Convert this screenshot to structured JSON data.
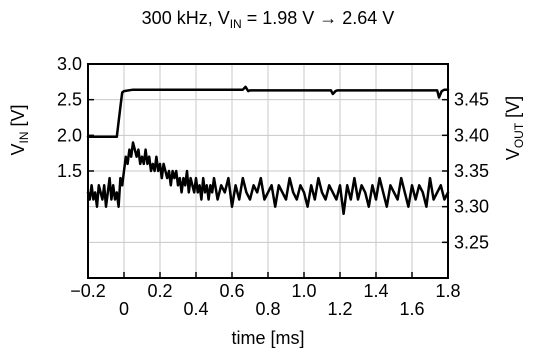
{
  "chart_data": {
    "type": "line",
    "title": {
      "prefix": "300 kHz, V",
      "sub1": "IN",
      "suffix": " = 1.98 V → 2.64 V"
    },
    "xlabel": "time [ms]",
    "ylabel_left": {
      "main": "V",
      "sub": "IN",
      "unit": " [V]"
    },
    "ylabel_right": {
      "main": "V",
      "sub": "OUT",
      "unit": " [V]"
    },
    "xlim": [
      -0.2,
      1.8
    ],
    "ylim_left": [
      0.0,
      3.0
    ],
    "ylim_right": [
      3.2,
      3.5
    ],
    "grid": true,
    "x_ticks": [
      {
        "value": -0.2,
        "label": "−0.2"
      },
      {
        "value": 0.0,
        "label": "0"
      },
      {
        "value": 0.2,
        "label": "0.2"
      },
      {
        "value": 0.4,
        "label": "0.4"
      },
      {
        "value": 0.6,
        "label": "0.6"
      },
      {
        "value": 0.8,
        "label": "0.8"
      },
      {
        "value": 1.0,
        "label": "1.0"
      },
      {
        "value": 1.2,
        "label": "1.2"
      },
      {
        "value": 1.4,
        "label": "1.4"
      },
      {
        "value": 1.6,
        "label": "1.6"
      },
      {
        "value": 1.8,
        "label": "1.8"
      }
    ],
    "y_left_ticks": [
      {
        "value": 3.0,
        "label": "3.0"
      },
      {
        "value": 2.5,
        "label": "2.5"
      },
      {
        "value": 2.0,
        "label": "2.0"
      },
      {
        "value": 1.5,
        "label": "1.5"
      }
    ],
    "y_right_ticks": [
      {
        "value": 3.45,
        "label": "3.45"
      },
      {
        "value": 3.4,
        "label": "3.40"
      },
      {
        "value": 3.35,
        "label": "3.35"
      },
      {
        "value": 3.3,
        "label": "3.30"
      },
      {
        "value": 3.25,
        "label": "3.25"
      }
    ],
    "series": [
      {
        "axis": "left",
        "color": "#000000",
        "x": [
          -0.2,
          -0.04,
          -0.02,
          -0.01,
          0.0,
          0.05,
          0.2,
          0.4,
          0.66,
          0.675,
          0.69,
          0.7,
          1.15,
          1.16,
          1.175,
          1.185,
          1.7,
          1.74,
          1.75,
          1.765,
          1.78,
          1.8
        ],
        "y": [
          1.98,
          1.98,
          2.4,
          2.6,
          2.62,
          2.64,
          2.64,
          2.64,
          2.64,
          2.68,
          2.62,
          2.63,
          2.63,
          2.58,
          2.62,
          2.63,
          2.63,
          2.63,
          2.53,
          2.62,
          2.64,
          2.64
        ]
      },
      {
        "axis": "right",
        "color": "#000000",
        "x": [
          -0.2,
          -0.19,
          -0.18,
          -0.17,
          -0.16,
          -0.15,
          -0.14,
          -0.13,
          -0.12,
          -0.11,
          -0.1,
          -0.09,
          -0.08,
          -0.07,
          -0.06,
          -0.05,
          -0.04,
          -0.03,
          -0.02,
          -0.01,
          0.0,
          0.01,
          0.02,
          0.03,
          0.04,
          0.05,
          0.06,
          0.07,
          0.08,
          0.09,
          0.1,
          0.11,
          0.12,
          0.13,
          0.14,
          0.15,
          0.16,
          0.17,
          0.18,
          0.19,
          0.2,
          0.21,
          0.22,
          0.23,
          0.24,
          0.25,
          0.26,
          0.27,
          0.28,
          0.29,
          0.3,
          0.31,
          0.32,
          0.33,
          0.34,
          0.35,
          0.36,
          0.37,
          0.38,
          0.39,
          0.4,
          0.41,
          0.42,
          0.43,
          0.44,
          0.45,
          0.46,
          0.47,
          0.48,
          0.49,
          0.5,
          0.52,
          0.54,
          0.56,
          0.58,
          0.6,
          0.62,
          0.64,
          0.66,
          0.68,
          0.7,
          0.72,
          0.74,
          0.76,
          0.78,
          0.8,
          0.82,
          0.84,
          0.86,
          0.88,
          0.9,
          0.92,
          0.94,
          0.96,
          0.98,
          1.0,
          1.02,
          1.04,
          1.06,
          1.08,
          1.1,
          1.12,
          1.14,
          1.16,
          1.18,
          1.2,
          1.22,
          1.24,
          1.26,
          1.28,
          1.3,
          1.32,
          1.34,
          1.36,
          1.38,
          1.4,
          1.42,
          1.44,
          1.46,
          1.48,
          1.5,
          1.52,
          1.54,
          1.56,
          1.58,
          1.6,
          1.62,
          1.64,
          1.66,
          1.68,
          1.7,
          1.72,
          1.74,
          1.76,
          1.78,
          1.8
        ],
        "y": [
          3.32,
          3.31,
          3.33,
          3.31,
          3.32,
          3.3,
          3.33,
          3.32,
          3.31,
          3.33,
          3.3,
          3.32,
          3.34,
          3.31,
          3.33,
          3.31,
          3.32,
          3.3,
          3.34,
          3.33,
          3.35,
          3.37,
          3.36,
          3.38,
          3.37,
          3.39,
          3.38,
          3.37,
          3.38,
          3.36,
          3.37,
          3.36,
          3.38,
          3.36,
          3.37,
          3.35,
          3.36,
          3.35,
          3.37,
          3.35,
          3.36,
          3.34,
          3.36,
          3.35,
          3.34,
          3.35,
          3.33,
          3.35,
          3.34,
          3.35,
          3.33,
          3.34,
          3.32,
          3.34,
          3.33,
          3.35,
          3.32,
          3.34,
          3.33,
          3.32,
          3.34,
          3.32,
          3.33,
          3.31,
          3.34,
          3.32,
          3.33,
          3.31,
          3.33,
          3.32,
          3.34,
          3.31,
          3.33,
          3.32,
          3.34,
          3.3,
          3.33,
          3.31,
          3.34,
          3.32,
          3.31,
          3.33,
          3.32,
          3.34,
          3.31,
          3.32,
          3.33,
          3.3,
          3.33,
          3.32,
          3.31,
          3.34,
          3.32,
          3.31,
          3.33,
          3.32,
          3.3,
          3.33,
          3.31,
          3.34,
          3.32,
          3.31,
          3.33,
          3.32,
          3.31,
          3.33,
          3.29,
          3.33,
          3.31,
          3.34,
          3.31,
          3.33,
          3.32,
          3.3,
          3.33,
          3.31,
          3.34,
          3.32,
          3.3,
          3.33,
          3.32,
          3.31,
          3.34,
          3.32,
          3.3,
          3.33,
          3.31,
          3.33,
          3.32,
          3.3,
          3.34,
          3.31,
          3.32,
          3.33,
          3.31,
          3.32
        ]
      }
    ]
  }
}
